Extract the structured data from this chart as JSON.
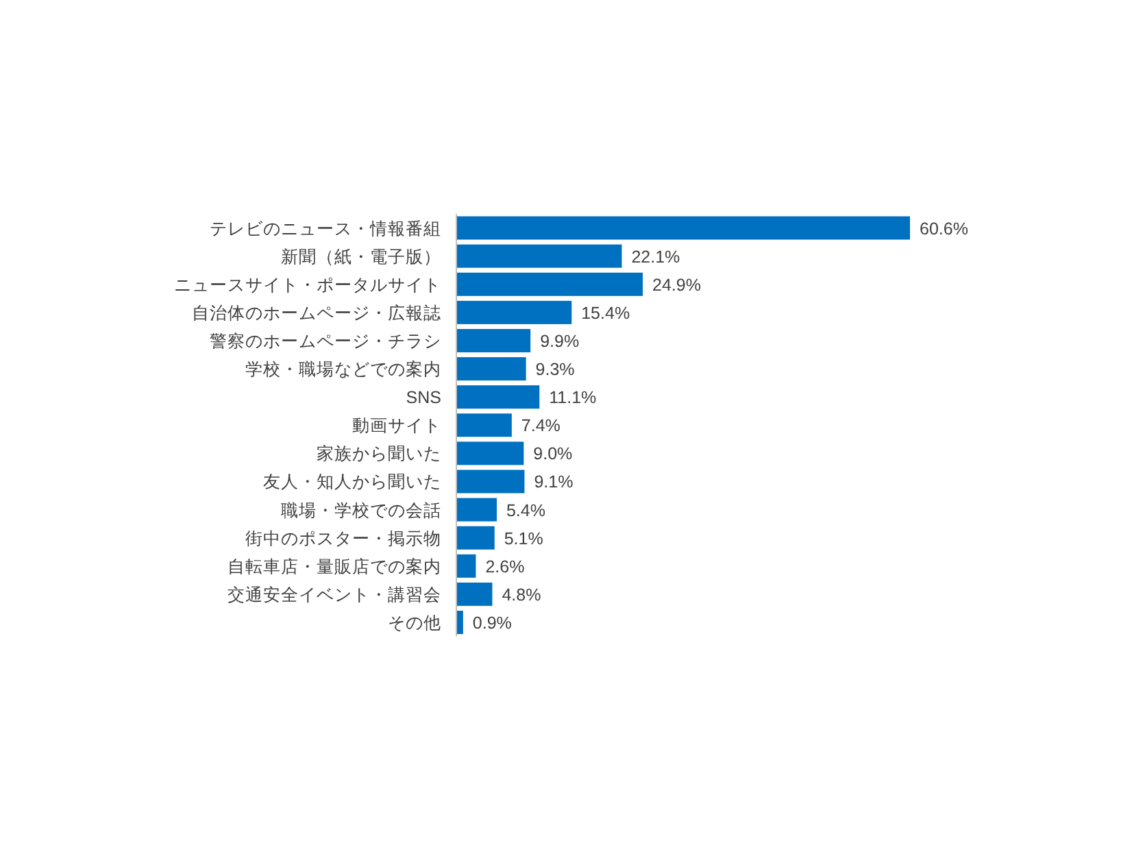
{
  "chart_data": {
    "type": "bar",
    "orientation": "horizontal",
    "color": "#0070c0",
    "data_labels": true,
    "categories": [
      "テレビのニュース・情報番組",
      "新聞（紙・電子版）",
      "ニュースサイト・ポータルサイト",
      "自治体のホームページ・広報誌",
      "警察のホームページ・チラシ",
      "学校・職場などでの案内",
      "SNS",
      "動画サイト",
      "家族から聞いた",
      "友人・知人から聞いた",
      "職場・学校での会話",
      "街中のポスター・掲示物",
      "自転車店・量販店での案内",
      "交通安全イベント・講習会",
      "その他"
    ],
    "values": [
      60.6,
      22.1,
      24.9,
      15.4,
      9.9,
      9.3,
      11.1,
      7.4,
      9.0,
      9.1,
      5.4,
      5.1,
      2.6,
      4.8,
      0.9
    ],
    "value_labels": [
      "60.6%",
      "22.1%",
      "24.9%",
      "15.4%",
      "9.9%",
      "9.3%",
      "11.1%",
      "7.4%",
      "9.0%",
      "9.1%",
      "5.4%",
      "5.1%",
      "2.6%",
      "4.8%",
      "0.9%"
    ]
  }
}
